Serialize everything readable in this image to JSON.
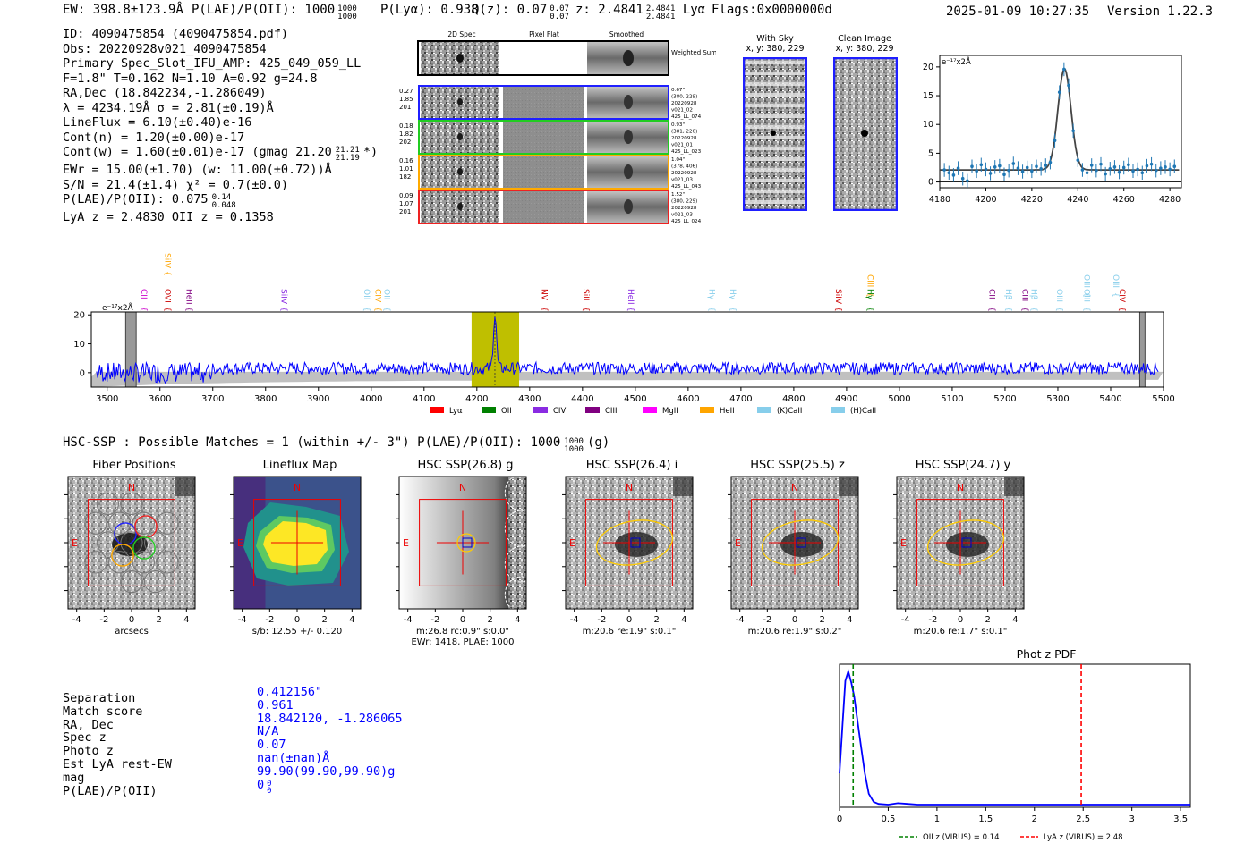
{
  "header": {
    "ew": "EW: 398.8±123.9Å",
    "plae": "P(LAE)/P(OII): 1000",
    "plae_hi": "1000",
    "plae_lo": "1000",
    "plya": "P(Lyα): 0.938",
    "qz": "Q(z): 0.07",
    "qz_hi": "0.07",
    "qz_lo": "0.07",
    "z": "z: 2.4841",
    "z_hi": "2.4841",
    "z_lo": "2.4841",
    "z_line": "Lyα",
    "flags": "Flags:0x0000000d",
    "datetime": "2025-01-09 10:27:35",
    "version": "Version 1.22.3"
  },
  "info_lines": [
    "ID: 4090475854 (4090475854.pdf)",
    "Obs: 20220928v021_4090475854",
    "Primary Spec_Slot_IFU_AMP: 425_049_059_LL",
    "F=1.8\"  T=0.162  N=1.10  A=0.92  g=24.8",
    "RA,Dec (18.842234,-1.286049)",
    "λ = 4234.19Å  σ = 2.81(±0.19)Å",
    "LineFlux = 6.10(±0.40)e-16",
    "Cont(n) = 1.20(±0.00)e-17",
    "Cont(w) = 1.60(±0.01)e-17 (gmag 21.20",
    "EWr = 15.00(±1.70) (w: 11.00(±0.72))Å",
    "S/N = 21.4(±1.4)  χ² = 0.7(±0.0)",
    "P(LAE)/P(OII): 0.075",
    "LyA z = 2.4830  OII z = 0.1358"
  ],
  "info_extras": {
    "gmag_hi": "21.21",
    "gmag_lo": "21.19",
    "gmag_tail": "*)",
    "plae_hi": "0.14",
    "plae_lo": "0.048"
  },
  "cutouts": {
    "col_labels": [
      "2D Spec",
      "Pixel Flat",
      "Smoothed"
    ],
    "weighted_label": "Weighted Sum",
    "rows": [
      {
        "left": [
          "0.27",
          "1.85",
          "201"
        ],
        "right": [
          "0.67\"",
          "(380, 229)",
          "20220928",
          "v021_02",
          "425_LL_074"
        ],
        "color": "#1f1fff"
      },
      {
        "left": [
          "0.18",
          "1.82",
          "202"
        ],
        "right": [
          "0.93\"",
          "(381, 220)",
          "20220928",
          "v021_01",
          "425_LL_023"
        ],
        "color": "#22cc22"
      },
      {
        "left": [
          "0.16",
          "1.01",
          "182"
        ],
        "right": [
          "1.04\"",
          "(378, 406)",
          "20220928",
          "v021_03",
          "425_LL_043"
        ],
        "color": "#ffaa00"
      },
      {
        "left": [
          "0.09",
          "1.07",
          "201"
        ],
        "right": [
          "1.52\"",
          "(380, 229)",
          "20220928",
          "v021_03",
          "425_LL_024"
        ],
        "color": "#ee2222"
      }
    ],
    "with_sky_title": "With Sky",
    "with_sky_xy": "x, y: 380, 229",
    "clean_title": "Clean Image",
    "clean_xy": "x, y: 380, 229"
  },
  "colors": {
    "blue": "#0000ff",
    "olive": "#bfbf00",
    "lya": "#ff0000",
    "oii": "#008000",
    "civ": "#8a2be2",
    "ciii": "#800080",
    "mgii": "#ff00ff",
    "heii": "#ffa500",
    "cal": "#87ceeb"
  },
  "chart_data": [
    {
      "type": "line",
      "name": "line-fit-zoom",
      "ylabel_unit": "e⁻¹⁷x2Å",
      "xlim": [
        4180,
        4285
      ],
      "ylim": [
        -1,
        22
      ],
      "xticks": [
        4180,
        4200,
        4220,
        4240,
        4260,
        4280
      ],
      "yticks": [
        0,
        5,
        10,
        15,
        20
      ],
      "fit": {
        "center": 4234.19,
        "sigma": 2.81,
        "peak": 17.6,
        "baseline": 2.1
      },
      "points_x": [
        4182,
        4184,
        4186,
        4188,
        4190,
        4192,
        4194,
        4196,
        4198,
        4200,
        4202,
        4204,
        4206,
        4208,
        4210,
        4212,
        4214,
        4216,
        4218,
        4220,
        4222,
        4224,
        4226,
        4228,
        4230,
        4232,
        4234,
        4236,
        4238,
        4240,
        4242,
        4244,
        4246,
        4248,
        4250,
        4252,
        4254,
        4256,
        4258,
        4260,
        4262,
        4264,
        4266,
        4268,
        4270,
        4272,
        4274,
        4276,
        4278,
        4280,
        4282
      ],
      "points_y": [
        2.1,
        1.6,
        1.2,
        2.4,
        0.6,
        0.2,
        2.7,
        1.9,
        3.0,
        2.2,
        1.5,
        2.6,
        2.8,
        1.3,
        2.0,
        3.2,
        2.4,
        1.8,
        2.5,
        1.9,
        2.7,
        2.3,
        2.9,
        3.4,
        7.2,
        15.6,
        19.6,
        16.8,
        8.9,
        3.8,
        2.1,
        1.6,
        2.9,
        2.0,
        3.1,
        1.4,
        2.3,
        2.6,
        1.7,
        2.5,
        3.0,
        1.9,
        2.2,
        1.6,
        2.8,
        3.1,
        2.0,
        2.4,
        2.6,
        2.2,
        2.7
      ]
    },
    {
      "type": "line",
      "name": "full-spectrum",
      "ylabel_unit": "e⁻¹⁷x2Å",
      "xlim": [
        3470,
        5500
      ],
      "ylim": [
        -5,
        21
      ],
      "xticks": [
        3500,
        3600,
        3700,
        3800,
        3900,
        4000,
        4100,
        4200,
        4300,
        4400,
        4500,
        4600,
        4700,
        4800,
        4900,
        5000,
        5100,
        5200,
        5300,
        5400,
        5500
      ],
      "yticks": [
        0,
        10,
        20
      ],
      "highlight": [
        4190,
        4280
      ],
      "peak_wave": 4234.19,
      "line_markers": [
        {
          "label": "CII",
          "wave": 3560,
          "color": "#cc00cc",
          "row": 2
        },
        {
          "label": "SiIV",
          "wave": 3605,
          "color": "#ffa500",
          "row": 0
        },
        {
          "label": "OVI",
          "wave": 3605,
          "color": "#cc0000",
          "row": 2
        },
        {
          "label": "HeII",
          "wave": 3645,
          "color": "#800080",
          "row": 2
        },
        {
          "label": "SiIV",
          "wave": 3825,
          "color": "#8a2be2",
          "row": 2
        },
        {
          "label": "OII",
          "wave": 3982,
          "color": "#87ceeb",
          "row": 2
        },
        {
          "label": "CIV",
          "wave": 4003,
          "color": "#ffa500",
          "row": 2
        },
        {
          "label": "OII",
          "wave": 4020,
          "color": "#87ceeb",
          "row": 2
        },
        {
          "label": "NV",
          "wave": 4318,
          "color": "#cc0000",
          "row": 2
        },
        {
          "label": "SiII",
          "wave": 4397,
          "color": "#cc0000",
          "row": 2
        },
        {
          "label": "HeII",
          "wave": 4482,
          "color": "#8a2be2",
          "row": 2
        },
        {
          "label": "Hγ",
          "wave": 4635,
          "color": "#87ceeb",
          "row": 2
        },
        {
          "label": "Hγ",
          "wave": 4675,
          "color": "#87ceeb",
          "row": 2
        },
        {
          "label": "SiIV",
          "wave": 4875,
          "color": "#cc0000",
          "row": 2
        },
        {
          "label": "CIII",
          "wave": 4935,
          "color": "#ffa500",
          "row": 1
        },
        {
          "label": "Hγ",
          "wave": 4935,
          "color": "#008000",
          "row": 2
        },
        {
          "label": "CII",
          "wave": 5165,
          "color": "#800080",
          "row": 2
        },
        {
          "label": "Hβ",
          "wave": 5197,
          "color": "#87ceeb",
          "row": 2
        },
        {
          "label": "CIII",
          "wave": 5228,
          "color": "#800080",
          "row": 2
        },
        {
          "label": "Hβ",
          "wave": 5245,
          "color": "#87ceeb",
          "row": 2
        },
        {
          "label": "OIII",
          "wave": 5293,
          "color": "#87ceeb",
          "row": 2
        },
        {
          "label": "OIII",
          "wave": 5345,
          "color": "#87ceeb",
          "row": 1
        },
        {
          "label": "OIII",
          "wave": 5400,
          "color": "#87ceeb",
          "row": 1
        },
        {
          "label": "OIII",
          "wave": 5345,
          "color": "#87ceeb",
          "row": 2
        },
        {
          "label": "CIV",
          "wave": 5412,
          "color": "#cc0000",
          "row": 2
        }
      ],
      "legend": [
        {
          "label": "Lyα",
          "color": "#ff0000"
        },
        {
          "label": "OII",
          "color": "#008000"
        },
        {
          "label": "CIV",
          "color": "#8a2be2"
        },
        {
          "label": "CIII",
          "color": "#800080"
        },
        {
          "label": "MgII",
          "color": "#ff00ff"
        },
        {
          "label": "HeII",
          "color": "#ffa500"
        },
        {
          "label": "(K)CaII",
          "color": "#87ceeb"
        },
        {
          "label": "(H)CaII",
          "color": "#87ceeb"
        }
      ]
    },
    {
      "type": "line",
      "name": "photz-pdf",
      "title": "Phot z PDF",
      "xlim": [
        0.0,
        3.6
      ],
      "xticks": [
        0.0,
        0.5,
        1.0,
        1.5,
        2.0,
        2.5,
        3.0,
        3.5
      ],
      "x": [
        0.0,
        0.03,
        0.06,
        0.09,
        0.12,
        0.15,
        0.18,
        0.22,
        0.26,
        0.3,
        0.35,
        0.4,
        0.5,
        0.6,
        0.7,
        0.8,
        1.0,
        1.5,
        2.0,
        2.5,
        3.0,
        3.6
      ],
      "y": [
        0.25,
        0.6,
        0.93,
        1.0,
        0.92,
        0.82,
        0.66,
        0.45,
        0.25,
        0.1,
        0.04,
        0.025,
        0.02,
        0.03,
        0.025,
        0.02,
        0.02,
        0.02,
        0.02,
        0.02,
        0.02,
        0.02
      ],
      "vlines": [
        {
          "x": 0.14,
          "color": "#008000",
          "label": "OII z (VIRUS) = 0.14"
        },
        {
          "x": 2.48,
          "color": "#ff0000",
          "label": "LyA z (VIRUS) = 2.48"
        }
      ]
    }
  ],
  "hsc_header": "HSC-SSP : Possible Matches = 1 (within +/- 3\")  P(LAE)/P(OII): 1000",
  "hsc_header_hi": "1000",
  "hsc_header_lo": "1000",
  "hsc_header_tail": "(g)",
  "panels": [
    {
      "title": "Fiber Positions",
      "sub1": "arcsecs",
      "sub2": "",
      "kind": "fiber"
    },
    {
      "title": "Lineflux Map",
      "sub1": "s/b: 12.55 +/- 0.120",
      "sub2": "",
      "kind": "lineflux"
    },
    {
      "title": "HSC SSP(26.8) g",
      "sub1": "m:26.8 rc:0.9\"  s:0.0\"",
      "sub2": "EWr: 1418, PLAE: 1000",
      "kind": "g"
    },
    {
      "title": "HSC SSP(26.4) i",
      "sub1": "m:20.6  re:1.9\"  s:0.1\"",
      "sub2": "",
      "kind": "i"
    },
    {
      "title": "HSC SSP(25.5) z",
      "sub1": "m:20.6  re:1.9\"  s:0.2\"",
      "sub2": "",
      "kind": "z"
    },
    {
      "title": "HSC SSP(24.7) y",
      "sub1": "m:20.6  re:1.7\"  s:0.1\"",
      "sub2": "",
      "kind": "y"
    }
  ],
  "panel_axis": {
    "ticks": [
      "-4",
      "-2",
      "0",
      "2",
      "4"
    ],
    "north": "N",
    "east": "E"
  },
  "match_table": {
    "labels": [
      "Separation",
      "Match score",
      "RA, Dec",
      "Spec z",
      "Photo z",
      "Est LyA rest-EW",
      "mag",
      "P(LAE)/P(OII)"
    ],
    "values": [
      "0.412156\"",
      "0.961",
      "18.842120, -1.286065",
      "N/A",
      "0.07",
      "nan(±nan)Å",
      "99.90(99.90,99.90)g",
      "0"
    ],
    "plae_hi": "0",
    "plae_lo": "0"
  }
}
